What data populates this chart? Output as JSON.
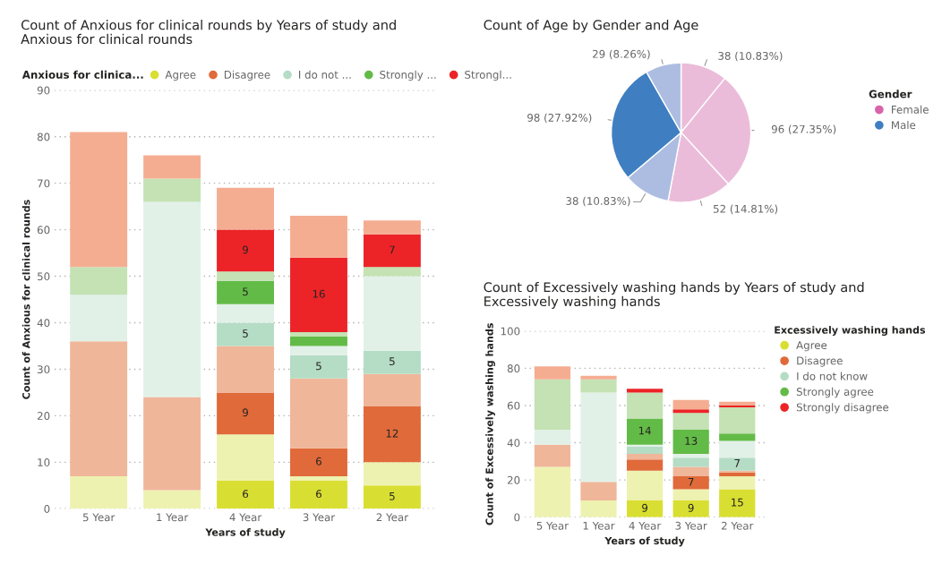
{
  "chart_data": [
    {
      "type": "bar",
      "stacked": true,
      "title": "Count of Anxious for clinical rounds by Years of study and Anxious for clinical rounds",
      "xlabel": "Years of study",
      "ylabel": "Count of Anxious for clinical rounds",
      "legend_title": "Anxious for clinica...",
      "legend": "top",
      "grid": "y",
      "categories": [
        "5 Year",
        "1 Year",
        "4 Year",
        "3 Year",
        "2 Year"
      ],
      "ylim": [
        0,
        90
      ],
      "yticks": [
        0,
        10,
        20,
        30,
        40,
        50,
        60,
        70,
        80,
        90
      ],
      "series": [
        {
          "name": "Agree",
          "color": "#d9df32",
          "values": [
            0,
            0,
            6,
            6,
            5
          ],
          "value_labels": [
            null,
            null,
            "6",
            "6",
            "5"
          ]
        },
        {
          "color": "#eef2b0",
          "values": [
            7,
            4,
            10,
            1,
            5
          ]
        },
        {
          "name": "Disagree",
          "color": "#e06a3a",
          "values": [
            0,
            0,
            9,
            6,
            12
          ],
          "value_labels": [
            null,
            null,
            "9",
            "6",
            "12"
          ]
        },
        {
          "color": "#f0b69a",
          "values": [
            29,
            20,
            10,
            15,
            7
          ]
        },
        {
          "name": "I do not ...",
          "color": "#b5dcc5",
          "values": [
            0,
            0,
            5,
            5,
            5
          ],
          "value_labels": [
            null,
            null,
            "5",
            "5",
            "5"
          ]
        },
        {
          "color": "#e2f1e8",
          "values": [
            10,
            42,
            4,
            2,
            16
          ]
        },
        {
          "name": "Strongly ...",
          "color": "#63bb47",
          "values": [
            0,
            0,
            5,
            2,
            0
          ],
          "value_labels": [
            null,
            null,
            "5",
            null,
            null
          ]
        },
        {
          "color": "#c4e2b3",
          "values": [
            6,
            5,
            2,
            1,
            2
          ]
        },
        {
          "name": "Strongl...",
          "color": "#ec2427",
          "values": [
            0,
            0,
            9,
            16,
            7
          ],
          "value_labels": [
            null,
            null,
            "9",
            "16",
            "7"
          ]
        },
        {
          "color": "#f5ad92",
          "values": [
            29,
            5,
            9,
            9,
            3
          ]
        }
      ]
    },
    {
      "type": "pie",
      "title": "Count of Age by Gender and Age",
      "legend_title": "Gender",
      "annotations": [
        "Female",
        "Male"
      ],
      "values": [
        38,
        96,
        52,
        38,
        98,
        29
      ],
      "categories": [
        null,
        null,
        null,
        null,
        null,
        null
      ],
      "colors": [
        "#ebbcd9",
        "#ebbcd9",
        "#ebbcd9",
        "#adbde1",
        "#3f7fc1",
        "#adbde1"
      ],
      "value_labels": [
        "38 (10.83%)",
        "96 (27.35%)",
        "52 (14.81%)",
        "38 (10.83%)",
        "98 (27.92%)",
        "29 (8.26%)"
      ]
    },
    {
      "type": "bar",
      "stacked": true,
      "title": "Count of Excessively washing hands by Years of study and Excessively washing hands",
      "xlabel": "Years of study",
      "ylabel": "Count of Excessively washing hands",
      "legend_title": "Excessively washing hands",
      "legend": "right",
      "grid": "y",
      "categories": [
        "5 Year",
        "1 Year",
        "4 Year",
        "3 Year",
        "2 Year"
      ],
      "ylim": [
        0,
        100
      ],
      "yticks": [
        0,
        20,
        40,
        60,
        80,
        100
      ],
      "series": [
        {
          "name": "Agree",
          "color": "#d9df32",
          "values": [
            0,
            0,
            9,
            9,
            15
          ],
          "value_labels": [
            null,
            null,
            "9",
            "9",
            "15"
          ]
        },
        {
          "color": "#eef2b0",
          "values": [
            27,
            9,
            16,
            6,
            7
          ]
        },
        {
          "name": "Disagree",
          "color": "#e06a3a",
          "values": [
            0,
            0,
            6,
            7,
            2
          ],
          "value_labels": [
            null,
            null,
            null,
            "7",
            null
          ]
        },
        {
          "color": "#f0b69a",
          "values": [
            12,
            10,
            3,
            5,
            1
          ]
        },
        {
          "name": "I do not know",
          "color": "#b5dcc5",
          "values": [
            0,
            0,
            4,
            5,
            7
          ],
          "value_labels": [
            null,
            null,
            null,
            null,
            "7"
          ]
        },
        {
          "color": "#e2f1e8",
          "values": [
            8,
            48,
            1,
            2,
            9
          ]
        },
        {
          "name": "Strongly agree",
          "color": "#63bb47",
          "values": [
            0,
            0,
            14,
            13,
            4
          ],
          "value_labels": [
            null,
            null,
            "14",
            "13",
            null
          ]
        },
        {
          "color": "#c4e2b3",
          "values": [
            27,
            7,
            14,
            9,
            14
          ]
        },
        {
          "name": "Strongly disagree",
          "color": "#ec2427",
          "values": [
            0,
            0,
            2,
            2,
            1
          ]
        },
        {
          "color": "#f5ad92",
          "values": [
            7,
            2,
            0,
            5,
            2
          ]
        }
      ]
    }
  ]
}
